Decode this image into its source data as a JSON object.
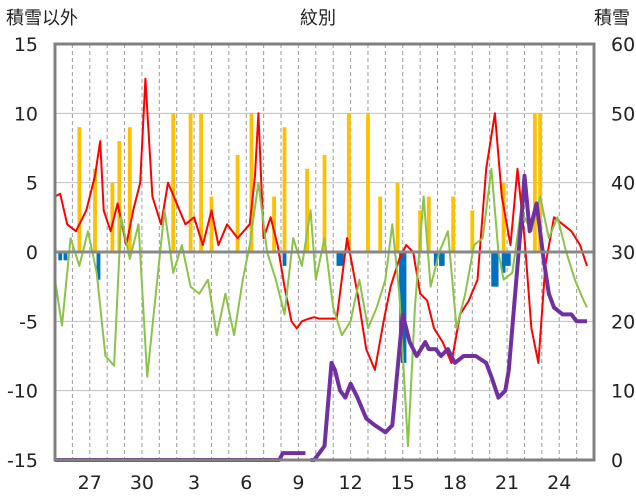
{
  "chart_data": {
    "type": "bar",
    "title": "紋別",
    "y_left_label": "積雪以外",
    "y_right_label": "積雪",
    "y_left_range": [
      -15,
      15
    ],
    "y_right_range": [
      0,
      60
    ],
    "y_left_ticks": [
      "15",
      "10",
      "5",
      "0",
      "-5",
      "-10",
      "-15"
    ],
    "y_right_ticks": [
      "60",
      "50",
      "40",
      "30",
      "20",
      "10",
      "0"
    ],
    "x_range": [
      0,
      31
    ],
    "x_tick_labels": [
      "27",
      "30",
      "3",
      "6",
      "9",
      "12",
      "15",
      "18",
      "21",
      "24"
    ],
    "x_tick_positions": [
      2,
      5,
      8,
      11,
      14,
      17,
      20,
      23,
      26,
      29
    ],
    "grid": true,
    "colors": {
      "temp_max": "#ff0000",
      "temp_min": "#8bc34a",
      "snowfall": "#ffc000",
      "snow_decrease": "#0070c0",
      "snow_depth": "#7030a0",
      "zero_line": "#888888"
    },
    "series": [
      {
        "key": "snowfall",
        "axis": "left",
        "style": "bar",
        "points": [
          [
            1.4,
            9
          ],
          [
            2.3,
            6
          ],
          [
            3.3,
            5
          ],
          [
            3.7,
            8
          ],
          [
            4.3,
            9
          ],
          [
            6.8,
            10
          ],
          [
            7.8,
            10
          ],
          [
            8.4,
            10
          ],
          [
            9.0,
            4
          ],
          [
            10.5,
            7
          ],
          [
            11.3,
            10
          ],
          [
            12.6,
            4
          ],
          [
            13.2,
            9
          ],
          [
            14.5,
            6
          ],
          [
            15.5,
            7
          ],
          [
            16.9,
            10
          ],
          [
            18.0,
            10
          ],
          [
            18.7,
            4
          ],
          [
            19.7,
            5
          ],
          [
            21.0,
            3
          ],
          [
            21.5,
            4
          ],
          [
            22.9,
            4
          ],
          [
            24.0,
            3
          ],
          [
            25.8,
            5
          ],
          [
            27.6,
            10
          ],
          [
            27.9,
            10
          ]
        ]
      },
      {
        "key": "snow_decrease",
        "axis": "left",
        "style": "bar",
        "points": [
          [
            0.3,
            -0.6
          ],
          [
            0.6,
            -0.6
          ],
          [
            2.5,
            -2
          ],
          [
            13.2,
            -1
          ],
          [
            16.3,
            -1
          ],
          [
            16.5,
            -1
          ],
          [
            19.9,
            -6
          ],
          [
            20.0,
            -8
          ],
          [
            20.1,
            -8
          ],
          [
            21.9,
            -1
          ],
          [
            22.2,
            -1
          ],
          [
            22.3,
            -1
          ],
          [
            25.2,
            -2.5
          ],
          [
            25.4,
            -2.5
          ],
          [
            25.8,
            -1.5
          ],
          [
            26.0,
            -1
          ],
          [
            26.1,
            -1
          ]
        ]
      },
      {
        "key": "temp_max",
        "axis": "left",
        "style": "line",
        "points": [
          [
            0.0,
            4.0
          ],
          [
            0.3,
            4.2
          ],
          [
            0.7,
            2.0
          ],
          [
            1.2,
            1.5
          ],
          [
            1.8,
            3.0
          ],
          [
            2.3,
            5.5
          ],
          [
            2.6,
            8.0
          ],
          [
            2.8,
            3.0
          ],
          [
            3.2,
            1.5
          ],
          [
            3.6,
            3.5
          ],
          [
            4.1,
            0.5
          ],
          [
            4.5,
            3.0
          ],
          [
            4.9,
            5.0
          ],
          [
            5.2,
            12.5
          ],
          [
            5.6,
            4.0
          ],
          [
            6.1,
            2.0
          ],
          [
            6.5,
            5.0
          ],
          [
            7.0,
            3.5
          ],
          [
            7.5,
            2.0
          ],
          [
            8.0,
            2.5
          ],
          [
            8.5,
            0.5
          ],
          [
            9.0,
            3.0
          ],
          [
            9.4,
            0.5
          ],
          [
            9.9,
            2.0
          ],
          [
            10.5,
            1.0
          ],
          [
            11.2,
            2.0
          ],
          [
            11.5,
            5.5
          ],
          [
            11.7,
            10.0
          ],
          [
            12.0,
            1.0
          ],
          [
            12.4,
            2.5
          ],
          [
            12.8,
            0.5
          ],
          [
            13.2,
            -2.5
          ],
          [
            13.6,
            -5.0
          ],
          [
            13.9,
            -5.5
          ],
          [
            14.2,
            -5.0
          ],
          [
            14.6,
            -4.8
          ],
          [
            14.9,
            -4.7
          ],
          [
            15.2,
            -4.8
          ],
          [
            15.8,
            -4.8
          ],
          [
            16.2,
            -4.8
          ],
          [
            16.8,
            1.0
          ],
          [
            17.4,
            -3.0
          ],
          [
            17.9,
            -7.0
          ],
          [
            18.4,
            -8.5
          ],
          [
            18.9,
            -5.0
          ],
          [
            19.3,
            -2.5
          ],
          [
            19.8,
            -0.5
          ],
          [
            20.2,
            0.5
          ],
          [
            20.6,
            0.0
          ],
          [
            21.0,
            -3.0
          ],
          [
            21.4,
            -3.5
          ],
          [
            21.8,
            -5.5
          ],
          [
            22.3,
            -6.5
          ],
          [
            22.8,
            -8.0
          ],
          [
            23.3,
            -4.5
          ],
          [
            23.8,
            -3.5
          ],
          [
            24.3,
            -2.0
          ],
          [
            24.8,
            6.0
          ],
          [
            25.3,
            10.0
          ],
          [
            25.7,
            4.0
          ],
          [
            26.2,
            0.5
          ],
          [
            26.6,
            6.0
          ],
          [
            27.0,
            1.0
          ],
          [
            27.4,
            -5.5
          ],
          [
            27.8,
            -8.0
          ],
          [
            28.2,
            -1.0
          ],
          [
            28.7,
            2.5
          ],
          [
            29.2,
            2.0
          ],
          [
            29.7,
            1.5
          ],
          [
            30.2,
            0.5
          ],
          [
            30.6,
            -1.0
          ]
        ]
      },
      {
        "key": "temp_min",
        "axis": "left",
        "style": "line",
        "points": [
          [
            0.0,
            -2.0
          ],
          [
            0.4,
            -5.3
          ],
          [
            0.9,
            1.0
          ],
          [
            1.4,
            -1.0
          ],
          [
            1.9,
            1.5
          ],
          [
            2.4,
            -1.5
          ],
          [
            2.9,
            -7.5
          ],
          [
            3.4,
            -8.2
          ],
          [
            3.8,
            2.5
          ],
          [
            4.3,
            -0.5
          ],
          [
            4.8,
            2.0
          ],
          [
            5.3,
            -9.0
          ],
          [
            5.8,
            -3.0
          ],
          [
            6.3,
            3.0
          ],
          [
            6.8,
            -1.5
          ],
          [
            7.3,
            0.5
          ],
          [
            7.8,
            -2.5
          ],
          [
            8.3,
            -3.0
          ],
          [
            8.8,
            -2.0
          ],
          [
            9.3,
            -6.0
          ],
          [
            9.8,
            -3.0
          ],
          [
            10.3,
            -6.0
          ],
          [
            10.8,
            -2.0
          ],
          [
            11.2,
            0.5
          ],
          [
            11.7,
            5.0
          ],
          [
            12.2,
            0.0
          ],
          [
            12.7,
            -2.0
          ],
          [
            13.2,
            -4.5
          ],
          [
            13.7,
            1.0
          ],
          [
            14.2,
            -1.0
          ],
          [
            14.7,
            3.0
          ],
          [
            15.0,
            -2.0
          ],
          [
            15.5,
            1.0
          ],
          [
            16.0,
            -4.0
          ],
          [
            16.5,
            -6.0
          ],
          [
            17.0,
            -5.0
          ],
          [
            17.5,
            -2.0
          ],
          [
            18.0,
            -5.5
          ],
          [
            18.5,
            -4.0
          ],
          [
            19.0,
            -2.0
          ],
          [
            19.4,
            2.0
          ],
          [
            19.8,
            -3.0
          ],
          [
            20.3,
            -14.0
          ],
          [
            20.7,
            -4.0
          ],
          [
            21.2,
            4.0
          ],
          [
            21.6,
            -2.5
          ],
          [
            22.1,
            0.0
          ],
          [
            22.6,
            1.5
          ],
          [
            23.1,
            -5.5
          ],
          [
            23.6,
            -3.0
          ],
          [
            24.1,
            0.5
          ],
          [
            24.6,
            1.0
          ],
          [
            25.1,
            6.0
          ],
          [
            25.5,
            0.0
          ],
          [
            25.8,
            -2.0
          ],
          [
            26.3,
            -1.5
          ],
          [
            26.8,
            3.0
          ],
          [
            27.4,
            1.5
          ],
          [
            27.9,
            4.0
          ],
          [
            28.4,
            1.0
          ],
          [
            28.9,
            2.5
          ],
          [
            29.4,
            0.0
          ],
          [
            29.9,
            -2.0
          ],
          [
            30.4,
            -3.5
          ],
          [
            30.6,
            -4.0
          ]
        ]
      },
      {
        "key": "snow_depth",
        "axis": "right",
        "style": "line",
        "segments": [
          [
            [
              0.0,
              0
            ],
            [
              12.9,
              0
            ],
            [
              13.1,
              1
            ],
            [
              13.8,
              1
            ],
            [
              14.4,
              1
            ],
            [
              14.4,
              1
            ]
          ],
          [
            [
              14.7,
              0
            ],
            [
              14.9,
              0
            ],
            [
              15.5,
              2
            ],
            [
              15.9,
              14
            ],
            [
              16.1,
              13
            ],
            [
              16.4,
              10
            ],
            [
              16.7,
              9
            ],
            [
              17.0,
              11
            ],
            [
              17.4,
              9
            ],
            [
              17.9,
              6
            ],
            [
              18.4,
              5
            ],
            [
              19.0,
              4
            ],
            [
              19.4,
              5
            ],
            [
              19.7,
              13
            ],
            [
              20.0,
              21
            ],
            [
              20.4,
              17
            ],
            [
              20.8,
              15
            ],
            [
              21.3,
              17
            ],
            [
              21.5,
              16
            ],
            [
              21.9,
              16
            ],
            [
              22.2,
              15
            ],
            [
              22.6,
              16
            ],
            [
              23.0,
              14
            ],
            [
              23.5,
              15
            ],
            [
              24.2,
              15
            ],
            [
              24.8,
              14
            ],
            [
              25.1,
              12
            ],
            [
              25.5,
              9
            ],
            [
              25.9,
              10
            ],
            [
              26.1,
              13
            ],
            [
              26.4,
              22
            ],
            [
              26.8,
              34
            ],
            [
              27.0,
              41
            ],
            [
              27.3,
              33
            ],
            [
              27.7,
              37
            ],
            [
              28.1,
              29
            ],
            [
              28.4,
              24
            ],
            [
              28.7,
              22
            ],
            [
              29.2,
              21
            ],
            [
              29.7,
              21
            ],
            [
              30.0,
              20
            ],
            [
              30.4,
              20
            ],
            [
              30.6,
              20
            ]
          ]
        ]
      }
    ]
  }
}
